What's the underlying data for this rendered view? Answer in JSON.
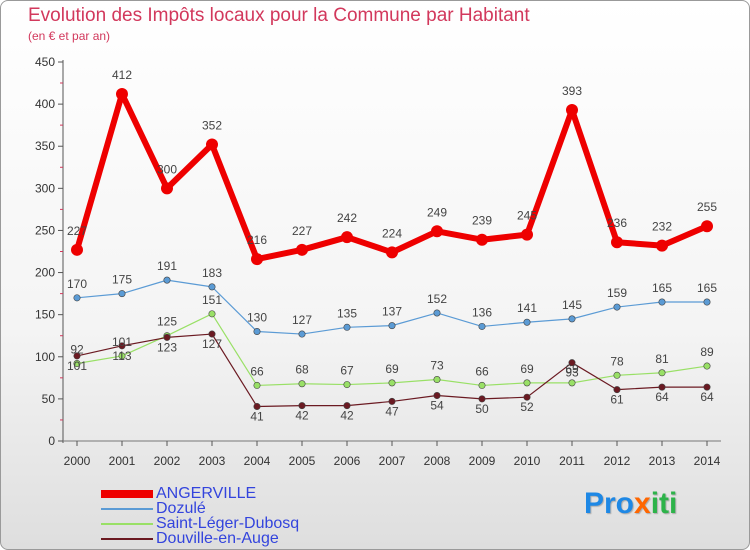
{
  "title": "Evolution des Impôts locaux pour la Commune par Habitant",
  "subtitle": "(en € et par an)",
  "logo": {
    "parts": [
      "Pro",
      "x",
      "iti"
    ],
    "colors": [
      "#1e88e5",
      "#ff6600",
      "#2db34a"
    ]
  },
  "chart_data": {
    "type": "line",
    "title": "Evolution des Impôts locaux pour la Commune par Habitant",
    "subtitle": "(en € et par an)",
    "xlabel": "",
    "ylabel": "",
    "ylim": [
      0,
      450
    ],
    "yticks": [
      0,
      50,
      100,
      150,
      200,
      250,
      300,
      350,
      400,
      450
    ],
    "grid": false,
    "legend_position": "bottom-left",
    "x": [
      "2000",
      "2001",
      "2002",
      "2003",
      "2004",
      "2005",
      "2006",
      "2007",
      "2008",
      "2009",
      "2010",
      "2011",
      "2012",
      "2013",
      "2014"
    ],
    "series": [
      {
        "name": "ANGERVILLE",
        "color": "#ee0000",
        "values": [
          227,
          412,
          300,
          352,
          216,
          227,
          242,
          224,
          249,
          239,
          245,
          393,
          236,
          232,
          255
        ]
      },
      {
        "name": "Dozulé",
        "color": "#5b9bd5",
        "values": [
          170,
          175,
          191,
          183,
          130,
          127,
          135,
          137,
          152,
          136,
          141,
          145,
          159,
          165,
          165
        ]
      },
      {
        "name": "Saint-Léger-Dubosq",
        "color": "#99e066",
        "values": [
          92,
          101,
          125,
          151,
          66,
          68,
          67,
          69,
          73,
          66,
          69,
          69,
          78,
          81,
          89
        ]
      },
      {
        "name": "Douville-en-Auge",
        "color": "#6b1a22",
        "values": [
          101,
          113,
          123,
          127,
          41,
          42,
          42,
          47,
          54,
          50,
          52,
          93,
          61,
          64,
          64
        ]
      }
    ]
  }
}
